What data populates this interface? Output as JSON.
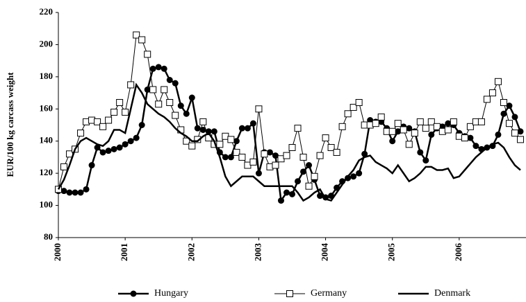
{
  "chart_data": {
    "type": "line",
    "ylabel": "EUR/100 kg carcass weight",
    "categories": [
      "2000",
      null,
      null,
      null,
      null,
      null,
      null,
      null,
      null,
      null,
      null,
      null,
      "2001",
      null,
      null,
      null,
      null,
      null,
      null,
      null,
      null,
      null,
      null,
      null,
      "2002",
      null,
      null,
      null,
      null,
      null,
      null,
      null,
      null,
      null,
      null,
      null,
      "2003",
      null,
      null,
      null,
      null,
      null,
      null,
      null,
      null,
      null,
      null,
      null,
      "2004",
      null,
      null,
      null,
      null,
      null,
      null,
      null,
      null,
      null,
      null,
      null,
      "2005",
      null,
      null,
      null,
      null,
      null,
      null,
      null,
      null,
      null,
      null,
      null,
      "2006",
      null,
      null,
      null,
      null,
      null,
      null,
      null,
      null,
      null,
      null,
      null
    ],
    "ylim": [
      80,
      220
    ],
    "yticks": [
      80,
      100,
      120,
      140,
      160,
      180,
      200,
      220
    ],
    "grid": false,
    "legend": "bottom",
    "series": [
      {
        "name": "Hungary",
        "color": "#000000",
        "marker": "circle",
        "values": [
          109,
          109,
          108,
          108,
          108,
          110,
          125,
          136,
          133,
          134,
          135,
          136,
          138,
          140,
          142,
          150,
          172,
          185,
          186,
          185,
          178,
          176,
          162,
          157,
          167,
          148,
          147,
          146,
          146,
          133,
          130,
          130,
          140,
          148,
          148,
          151,
          120,
          133,
          133,
          131,
          103,
          108,
          107,
          115,
          121,
          125,
          116,
          106,
          105,
          106,
          111,
          115,
          117,
          118,
          120,
          132,
          153,
          152,
          152,
          148,
          140,
          146,
          149,
          148,
          146,
          133,
          128,
          144,
          148,
          149,
          151,
          150,
          145,
          143,
          142,
          137,
          135,
          136,
          137,
          144,
          157,
          162,
          155,
          146
        ]
      },
      {
        "name": "Germany",
        "color": "#000000",
        "marker": "square",
        "values": [
          110,
          124,
          132,
          135,
          145,
          152,
          153,
          152,
          149,
          153,
          158,
          164,
          158,
          175,
          206,
          203,
          194,
          172,
          163,
          172,
          164,
          156,
          147,
          140,
          137,
          141,
          152,
          142,
          138,
          138,
          143,
          141,
          133,
          130,
          125,
          127,
          160,
          132,
          124,
          125,
          129,
          131,
          136,
          148,
          130,
          112,
          118,
          131,
          142,
          136,
          133,
          149,
          157,
          161,
          164,
          150,
          150,
          151,
          155,
          146,
          146,
          151,
          147,
          138,
          145,
          152,
          148,
          152,
          149,
          146,
          147,
          152,
          143,
          142,
          149,
          152,
          152,
          166,
          170,
          177,
          164,
          151,
          145,
          141
        ]
      },
      {
        "name": "Denmark",
        "color": "#000000",
        "marker": "none",
        "values": [
          110,
          116,
          125,
          135,
          140,
          142,
          140,
          138,
          137,
          140,
          147,
          147,
          145,
          160,
          175,
          170,
          163,
          160,
          157,
          155,
          152,
          148,
          145,
          143,
          140,
          140,
          143,
          145,
          140,
          130,
          118,
          112,
          115,
          118,
          118,
          118,
          115,
          112,
          112,
          112,
          112,
          112,
          112,
          108,
          103,
          105,
          108,
          110,
          104,
          103,
          108,
          113,
          118,
          122,
          128,
          130,
          131,
          127,
          125,
          123,
          120,
          125,
          120,
          115,
          117,
          120,
          124,
          124,
          122,
          122,
          123,
          117,
          118,
          122,
          126,
          130,
          133,
          136,
          138,
          139,
          136,
          130,
          125,
          122
        ]
      }
    ]
  }
}
